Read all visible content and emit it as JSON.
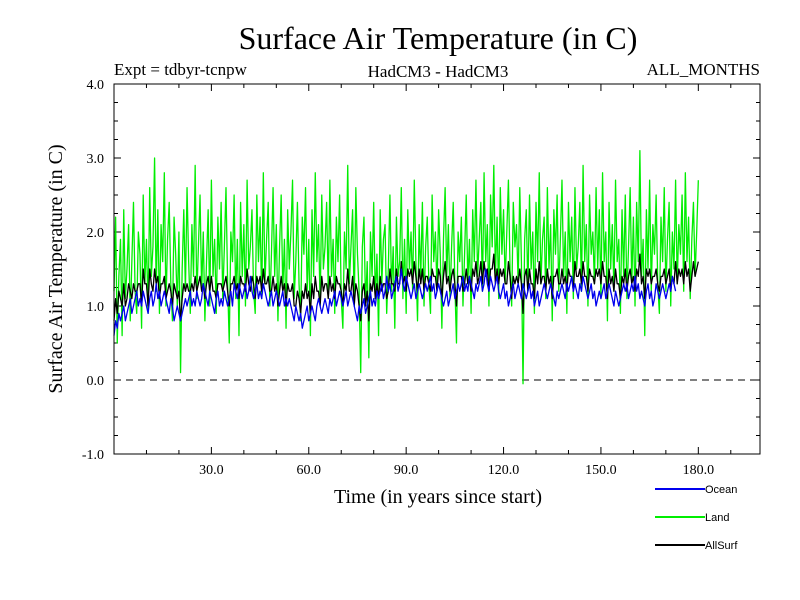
{
  "chart_data": {
    "type": "line",
    "title": "Surface Air Temperature (in C)",
    "subtitle_left": "Expt = tdbyr-tcnpw",
    "subtitle_center": "HadCM3 - HadCM3",
    "subtitle_right": "ALL_MONTHS",
    "xlabel": "Time (in years since start)",
    "ylabel": "Surface Air Temperature (in C)",
    "xlim": [
      0,
      199
    ],
    "ylim": [
      -1.0,
      4.0
    ],
    "x_ticks": [
      30,
      60,
      90,
      120,
      150,
      180
    ],
    "x_tick_labels": [
      "30.0",
      "60.0",
      "90.0",
      "120.0",
      "150.0",
      "180.0"
    ],
    "y_ticks": [
      -1.0,
      0.0,
      1.0,
      2.0,
      3.0,
      4.0
    ],
    "y_tick_labels": [
      "-1.0",
      "0.0",
      "1.0",
      "2.0",
      "3.0",
      "4.0"
    ],
    "zero_line": 0.0,
    "series": [
      {
        "name": "Land",
        "color": "#00ee00",
        "x_step": 0.5,
        "values": [
          1.2,
          2.2,
          0.5,
          1.4,
          1.9,
          0.6,
          2.3,
          1.1,
          1.5,
          2.1,
          0.8,
          1.6,
          2.4,
          1.2,
          0.9,
          2.0,
          1.7,
          0.7,
          2.5,
          1.3,
          1.9,
          0.9,
          2.6,
          1.4,
          1.8,
          3.0,
          1.2,
          2.3,
          0.9,
          2.1,
          1.6,
          2.8,
          1.0,
          1.9,
          2.4,
          1.3,
          0.8,
          2.2,
          1.7,
          1.0,
          2.0,
          0.1,
          1.5,
          2.3,
          1.2,
          2.6,
          1.6,
          0.9,
          2.1,
          1.4,
          2.9,
          1.1,
          1.8,
          2.5,
          1.2,
          2.0,
          0.8,
          1.6,
          2.3,
          1.0,
          2.7,
          1.4,
          1.9,
          0.9,
          2.2,
          1.5,
          2.4,
          1.1,
          1.8,
          2.6,
          1.3,
          0.5,
          2.0,
          1.6,
          2.5,
          1.1,
          1.9,
          0.6,
          2.4,
          1.4,
          2.1,
          1.0,
          2.7,
          1.5,
          1.8,
          2.3,
          1.2,
          0.9,
          2.5,
          1.6,
          2.2,
          1.1,
          2.8,
          1.3,
          1.9,
          2.4,
          1.0,
          1.7,
          2.6,
          1.4,
          2.1,
          0.8,
          1.8,
          2.5,
          1.2,
          1.9,
          0.7,
          2.3,
          1.5,
          2.0,
          2.7,
          1.1,
          1.6,
          2.4,
          1.3,
          0.8,
          2.2,
          1.7,
          2.6,
          1.2,
          1.9,
          0.6,
          2.3,
          1.4,
          2.8,
          1.6,
          2.1,
          1.0,
          2.5,
          1.5,
          1.8,
          2.4,
          1.2,
          2.7,
          1.4,
          1.9,
          0.9,
          2.2,
          1.6,
          2.5,
          1.1,
          0.7,
          2.0,
          1.5,
          2.9,
          1.3,
          1.8,
          2.3,
          1.0,
          2.6,
          1.7,
          1.2,
          0.1,
          1.8,
          2.2,
          1.0,
          1.6,
          0.3,
          2.0,
          1.4,
          2.4,
          1.1,
          1.7,
          0.6,
          2.3,
          1.3,
          1.9,
          2.1,
          0.9,
          1.5,
          2.5,
          1.2,
          1.8,
          0.7,
          2.2,
          1.4,
          1.6,
          2.6,
          1.1,
          1.9,
          0.9,
          2.3,
          1.5,
          2.0,
          1.2,
          2.7,
          1.6,
          0.8,
          2.1,
          1.4,
          2.4,
          1.0,
          1.8,
          2.2,
          1.3,
          0.9,
          2.5,
          1.6,
          2.0,
          1.2,
          2.3,
          1.7,
          0.7,
          1.9,
          2.6,
          1.4,
          2.1,
          1.1,
          1.8,
          2.4,
          1.3,
          0.5,
          2.0,
          1.6,
          2.2,
          1.0,
          1.7,
          2.5,
          1.3,
          1.9,
          0.9,
          2.3,
          1.6,
          2.7,
          1.4,
          1.9,
          2.4,
          1.2,
          2.8,
          1.6,
          2.1,
          1.0,
          2.5,
          1.8,
          2.9,
          1.4,
          2.2,
          1.1,
          2.6,
          1.7,
          2.3,
          1.3,
          2.0,
          2.7,
          1.5,
          1.0,
          2.4,
          1.8,
          2.1,
          1.3,
          2.6,
          1.6,
          -0.05,
          1.9,
          2.3,
          1.2,
          2.5,
          1.5,
          2.0,
          0.9,
          2.4,
          1.6,
          2.8,
          1.3,
          1.9,
          2.2,
          1.1,
          2.6,
          1.5,
          2.1,
          0.8,
          2.3,
          1.7,
          2.5,
          1.2,
          1.9,
          2.7,
          1.4,
          2.0,
          0.9,
          2.4,
          1.6,
          2.2,
          1.1,
          2.6,
          1.5,
          1.8,
          2.4,
          1.2,
          2.9,
          1.6,
          2.1,
          1.0,
          2.5,
          1.7,
          2.0,
          1.3,
          2.6,
          1.5,
          2.3,
          1.1,
          2.8,
          1.6,
          2.0,
          0.8,
          2.4,
          1.5,
          2.1,
          1.2,
          2.7,
          1.6,
          1.9,
          0.9,
          2.3,
          1.4,
          2.5,
          1.1,
          1.8,
          2.6,
          1.3,
          2.2,
          1.0,
          2.4,
          1.6,
          3.1,
          1.4,
          1.9,
          0.6,
          2.3,
          1.5,
          2.7,
          1.2,
          2.1,
          1.7,
          2.5,
          1.3,
          0.9,
          2.2,
          1.6,
          2.6,
          1.2,
          1.9,
          2.4,
          1.0,
          2.0,
          1.5,
          2.7,
          1.3,
          2.1,
          1.7,
          2.5,
          1.2,
          2.8,
          1.6,
          2.2,
          1.1,
          1.9,
          2.4,
          1.4,
          2.0,
          2.7
        ]
      },
      {
        "name": "Ocean",
        "color": "#0000ee",
        "x_step": 0.5,
        "values": [
          0.6,
          0.8,
          0.7,
          0.9,
          0.8,
          0.9,
          1.0,
          0.8,
          0.9,
          1.0,
          1.1,
          0.9,
          1.0,
          1.1,
          1.2,
          1.0,
          1.1,
          1.0,
          1.2,
          1.1,
          1.0,
          0.9,
          1.1,
          1.2,
          1.0,
          1.1,
          1.3,
          1.1,
          1.2,
          1.0,
          1.1,
          1.2,
          1.1,
          1.0,
          0.9,
          1.1,
          1.0,
          0.8,
          0.9,
          1.0,
          0.9,
          0.8,
          0.9,
          1.0,
          1.1,
          1.0,
          1.1,
          1.2,
          1.0,
          1.1,
          1.0,
          1.2,
          1.1,
          1.0,
          1.1,
          1.3,
          1.2,
          1.1,
          1.0,
          1.2,
          1.1,
          1.0,
          0.9,
          1.1,
          1.2,
          1.0,
          1.1,
          1.0,
          1.2,
          1.1,
          1.0,
          1.1,
          1.2,
          1.0,
          1.3,
          1.2,
          1.1,
          1.3,
          1.2,
          1.1,
          1.2,
          1.3,
          1.1,
          1.2,
          1.4,
          1.2,
          1.1,
          1.2,
          1.3,
          1.1,
          1.2,
          1.1,
          1.3,
          1.2,
          1.1,
          1.0,
          1.1,
          1.2,
          1.0,
          1.1,
          1.2,
          1.1,
          1.0,
          1.1,
          1.2,
          1.0,
          1.1,
          1.0,
          1.1,
          1.0,
          0.9,
          0.8,
          1.0,
          0.9,
          0.8,
          0.9,
          0.7,
          0.8,
          0.9,
          1.0,
          0.8,
          0.9,
          1.0,
          0.9,
          0.8,
          1.0,
          1.1,
          1.0,
          0.9,
          1.0,
          1.1,
          1.0,
          0.9,
          1.1,
          1.0,
          1.1,
          1.2,
          1.0,
          1.1,
          1.2,
          1.1,
          1.0,
          1.1,
          1.2,
          1.0,
          1.1,
          1.2,
          1.1,
          1.0,
          0.9,
          0.8,
          1.0,
          0.9,
          1.0,
          1.1,
          0.9,
          1.0,
          1.1,
          1.2,
          1.0,
          1.1,
          1.0,
          1.2,
          1.1,
          1.2,
          1.3,
          1.1,
          1.2,
          1.4,
          1.2,
          1.3,
          1.1,
          1.2,
          1.3,
          1.4,
          1.2,
          1.3,
          1.5,
          1.3,
          1.2,
          1.4,
          1.3,
          1.2,
          1.1,
          1.2,
          1.3,
          1.1,
          1.2,
          1.3,
          1.2,
          1.1,
          1.2,
          1.3,
          1.2,
          1.3,
          1.4,
          1.2,
          1.3,
          1.1,
          1.2,
          1.3,
          1.2,
          1.1,
          1.0,
          1.1,
          1.2,
          1.0,
          1.1,
          1.2,
          1.3,
          1.1,
          1.2,
          1.3,
          1.2,
          1.3,
          1.4,
          1.2,
          1.3,
          1.2,
          1.4,
          1.3,
          1.2,
          1.1,
          1.3,
          1.2,
          1.3,
          1.4,
          1.2,
          1.3,
          1.5,
          1.3,
          1.2,
          1.4,
          1.3,
          1.2,
          1.3,
          1.4,
          1.2,
          1.1,
          1.2,
          1.3,
          1.1,
          1.2,
          1.0,
          1.1,
          1.2,
          1.3,
          1.1,
          1.2,
          1.3,
          1.2,
          1.1,
          1.3,
          1.2,
          1.1,
          1.2,
          1.3,
          1.1,
          1.2,
          1.0,
          1.1,
          1.2,
          1.0,
          1.1,
          1.2,
          1.3,
          1.2,
          1.1,
          1.2,
          1.3,
          1.2,
          1.1,
          1.0,
          1.2,
          1.1,
          1.2,
          1.3,
          1.2,
          1.1,
          1.3,
          1.2,
          1.3,
          1.4,
          1.2,
          1.3,
          1.2,
          1.1,
          1.3,
          1.2,
          1.4,
          1.3,
          1.2,
          1.1,
          1.2,
          1.3,
          1.1,
          1.2,
          1.0,
          1.1,
          1.2,
          1.1,
          1.2,
          1.3,
          1.1,
          1.2,
          1.3,
          1.2,
          1.1,
          1.0,
          1.2,
          1.1,
          1.0,
          1.1,
          1.2,
          1.3,
          1.2,
          1.3,
          1.1,
          1.2,
          1.3,
          1.2,
          1.4,
          1.2,
          1.3,
          1.1,
          1.2,
          1.1,
          1.0,
          1.2,
          1.3,
          1.1,
          1.2,
          1.0,
          1.1,
          1.3,
          1.2,
          1.1,
          1.2,
          1.3,
          1.2,
          1.1,
          1.2,
          1.3,
          1.2,
          1.4,
          1.3,
          1.2
        ]
      },
      {
        "name": "AllSurf",
        "color": "#000000",
        "x_step": 0.5,
        "values": [
          0.8,
          1.1,
          0.9,
          1.2,
          1.1,
          1.0,
          1.3,
          1.0,
          1.1,
          1.3,
          1.2,
          1.1,
          1.3,
          1.2,
          1.2,
          1.3,
          1.3,
          1.0,
          1.5,
          1.3,
          1.3,
          1.0,
          1.5,
          1.3,
          1.2,
          1.5,
          1.3,
          1.4,
          1.1,
          1.3,
          1.3,
          1.4,
          1.1,
          1.2,
          1.3,
          1.2,
          1.0,
          1.3,
          1.2,
          1.1,
          1.2,
          0.8,
          1.1,
          1.3,
          1.2,
          1.3,
          1.2,
          1.2,
          1.3,
          1.2,
          1.4,
          1.2,
          1.3,
          1.4,
          1.2,
          1.3,
          1.1,
          1.3,
          1.4,
          1.2,
          1.4,
          1.2,
          1.2,
          1.1,
          1.3,
          1.3,
          1.3,
          1.2,
          1.3,
          1.4,
          1.2,
          1.0,
          1.3,
          1.3,
          1.4,
          1.2,
          1.3,
          1.1,
          1.4,
          1.3,
          1.3,
          1.2,
          1.5,
          1.3,
          1.2,
          1.4,
          1.3,
          1.1,
          1.4,
          1.3,
          1.4,
          1.2,
          1.5,
          1.3,
          1.3,
          1.4,
          1.2,
          1.2,
          1.4,
          1.2,
          1.3,
          1.0,
          1.2,
          1.4,
          1.2,
          1.3,
          1.0,
          1.3,
          1.2,
          1.2,
          1.3,
          1.0,
          1.0,
          1.2,
          1.1,
          0.9,
          1.2,
          1.1,
          1.3,
          1.1,
          1.2,
          0.9,
          1.3,
          1.1,
          1.4,
          1.2,
          1.2,
          1.0,
          1.4,
          1.2,
          1.3,
          1.3,
          1.1,
          1.4,
          1.2,
          1.3,
          1.1,
          1.4,
          1.3,
          1.3,
          1.2,
          1.0,
          1.3,
          1.2,
          1.5,
          1.2,
          1.2,
          1.4,
          1.0,
          1.3,
          1.2,
          1.0,
          0.8,
          1.2,
          1.3,
          1.0,
          1.2,
          0.8,
          1.3,
          1.2,
          1.4,
          1.1,
          1.3,
          1.1,
          1.4,
          1.2,
          1.3,
          1.3,
          1.1,
          1.2,
          1.5,
          1.3,
          1.3,
          1.2,
          1.5,
          1.3,
          1.3,
          1.6,
          1.3,
          1.4,
          1.2,
          1.5,
          1.4,
          1.5,
          1.3,
          1.6,
          1.4,
          1.2,
          1.5,
          1.3,
          1.5,
          1.2,
          1.4,
          1.4,
          1.3,
          1.2,
          1.5,
          1.4,
          1.4,
          1.2,
          1.5,
          1.4,
          1.1,
          1.4,
          1.6,
          1.3,
          1.4,
          1.2,
          1.4,
          1.5,
          1.3,
          1.0,
          1.4,
          1.4,
          1.4,
          1.2,
          1.3,
          1.5,
          1.3,
          1.4,
          1.2,
          1.5,
          1.4,
          1.6,
          1.3,
          1.4,
          1.6,
          1.3,
          1.6,
          1.4,
          1.5,
          1.2,
          1.5,
          1.5,
          1.7,
          1.3,
          1.5,
          1.3,
          1.5,
          1.4,
          1.5,
          1.3,
          1.3,
          1.6,
          1.4,
          1.1,
          1.4,
          1.3,
          1.4,
          1.3,
          1.5,
          1.3,
          0.9,
          1.4,
          1.5,
          1.2,
          1.5,
          1.3,
          1.3,
          1.1,
          1.5,
          1.3,
          1.6,
          1.3,
          1.4,
          1.4,
          1.2,
          1.5,
          1.3,
          1.4,
          1.1,
          1.4,
          1.4,
          1.5,
          1.3,
          1.3,
          1.5,
          1.3,
          1.4,
          1.2,
          1.5,
          1.4,
          1.4,
          1.2,
          1.6,
          1.4,
          1.4,
          1.5,
          1.3,
          1.6,
          1.4,
          1.4,
          1.2,
          1.5,
          1.4,
          1.4,
          1.3,
          1.5,
          1.4,
          1.5,
          1.3,
          1.6,
          1.4,
          1.4,
          1.1,
          1.5,
          1.3,
          1.4,
          1.2,
          1.5,
          1.3,
          1.3,
          1.1,
          1.4,
          1.3,
          1.5,
          1.2,
          1.4,
          1.5,
          1.3,
          1.4,
          1.2,
          1.5,
          1.4,
          1.7,
          1.3,
          1.4,
          1.1,
          1.5,
          1.4,
          1.5,
          1.3,
          1.4,
          1.4,
          1.5,
          1.3,
          1.2,
          1.4,
          1.4,
          1.5,
          1.3,
          1.4,
          1.5,
          1.2,
          1.4,
          1.3,
          1.6,
          1.3,
          1.5,
          1.4,
          1.5,
          1.3,
          1.6,
          1.4,
          1.5,
          1.2,
          1.4,
          1.6,
          1.4,
          1.5,
          1.6
        ]
      }
    ],
    "legend": {
      "placement": "bottom-right",
      "entries": [
        {
          "name": "Ocean",
          "color": "#0000ee"
        },
        {
          "name": "Land",
          "color": "#00ee00"
        },
        {
          "name": "AllSurf",
          "color": "#000000"
        }
      ]
    }
  }
}
